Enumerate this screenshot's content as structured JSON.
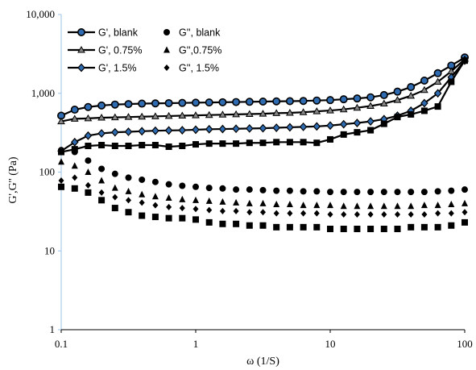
{
  "chart_data": {
    "type": "scatter",
    "title": "",
    "xlabel": "ω (1/S)",
    "ylabel": "G',G'' (Pa)",
    "xscale": "log",
    "yscale": "log",
    "xlim": [
      0.1,
      100
    ],
    "ylim": [
      1,
      10000
    ],
    "x_ticks": [
      "0.1",
      "1",
      "10",
      "100"
    ],
    "y_ticks": [
      "1",
      "10",
      "100",
      "1,000",
      "10,000"
    ],
    "grid": false,
    "legend_position": "top-left",
    "colors": {
      "black": "#000000",
      "blue_fill": "#2e6bb0",
      "axis": "#9dc3e6"
    },
    "x": [
      0.1,
      0.126,
      0.1585,
      0.1995,
      0.2512,
      0.3162,
      0.3981,
      0.5012,
      0.631,
      0.7943,
      1.0,
      1.259,
      1.585,
      1.995,
      2.512,
      3.162,
      3.981,
      5.012,
      6.31,
      7.943,
      10.0,
      12.59,
      15.85,
      19.95,
      25.12,
      31.62,
      39.81,
      50.12,
      63.1,
      79.43,
      100.0
    ],
    "series": [
      {
        "name": "G', blank",
        "marker": "circle-line",
        "values": [
          520,
          620,
          670,
          700,
          720,
          730,
          740,
          745,
          750,
          755,
          760,
          765,
          770,
          775,
          780,
          785,
          790,
          795,
          800,
          810,
          820,
          840,
          860,
          890,
          950,
          1050,
          1200,
          1450,
          1800,
          2250,
          2850
        ]
      },
      {
        "name": "G'', blank",
        "marker": "circle",
        "values": [
          190,
          180,
          140,
          110,
          95,
          85,
          80,
          75,
          70,
          67,
          65,
          63,
          62,
          60,
          60,
          59,
          58,
          58,
          57,
          57,
          56,
          56,
          56,
          56,
          56,
          56,
          56,
          56,
          57,
          58,
          60
        ]
      },
      {
        "name": "G', 0.75%",
        "marker": "triangle-line",
        "values": [
          440,
          475,
          480,
          490,
          495,
          500,
          505,
          510,
          515,
          520,
          525,
          530,
          535,
          540,
          545,
          550,
          560,
          565,
          575,
          590,
          605,
          625,
          655,
          690,
          740,
          820,
          930,
          1100,
          1400,
          1900,
          2700
        ]
      },
      {
        "name": "G'',0.75%",
        "marker": "triangle",
        "values": [
          135,
          120,
          100,
          78,
          63,
          57,
          52,
          49,
          47,
          45,
          44,
          43,
          42,
          41,
          40,
          40,
          39,
          39,
          38,
          38,
          38,
          37,
          37,
          37,
          37,
          37,
          37,
          38,
          38,
          39,
          40
        ]
      },
      {
        "name": "G', 1.5%",
        "marker": "diamond-line",
        "values": [
          185,
          240,
          290,
          310,
          320,
          325,
          330,
          335,
          338,
          340,
          345,
          350,
          352,
          355,
          358,
          360,
          365,
          370,
          375,
          380,
          390,
          405,
          420,
          440,
          470,
          520,
          600,
          750,
          1000,
          1600,
          2600
        ]
      },
      {
        "name": "G'', 1.5%",
        "marker": "diamond",
        "values": [
          78,
          85,
          68,
          55,
          48,
          44,
          41,
          38,
          36,
          35,
          34,
          33,
          32,
          32,
          31,
          31,
          30,
          30,
          30,
          30,
          29,
          29,
          29,
          29,
          29,
          29,
          29,
          29,
          30,
          30,
          31
        ]
      },
      {
        "name": "",
        "marker": "square-line",
        "values": [
          180,
          195,
          215,
          220,
          215,
          215,
          220,
          220,
          210,
          215,
          225,
          230,
          230,
          230,
          235,
          235,
          240,
          240,
          240,
          235,
          260,
          300,
          320,
          340,
          410,
          500,
          540,
          600,
          680,
          1400,
          2600
        ]
      },
      {
        "name": "",
        "marker": "square",
        "values": [
          65,
          62,
          55,
          44,
          35,
          31,
          28,
          27,
          26,
          26,
          25,
          23,
          22,
          22,
          21,
          21,
          20,
          20,
          20,
          20,
          19,
          19,
          19,
          19,
          19,
          19,
          20,
          20,
          20,
          21,
          23
        ]
      }
    ]
  }
}
